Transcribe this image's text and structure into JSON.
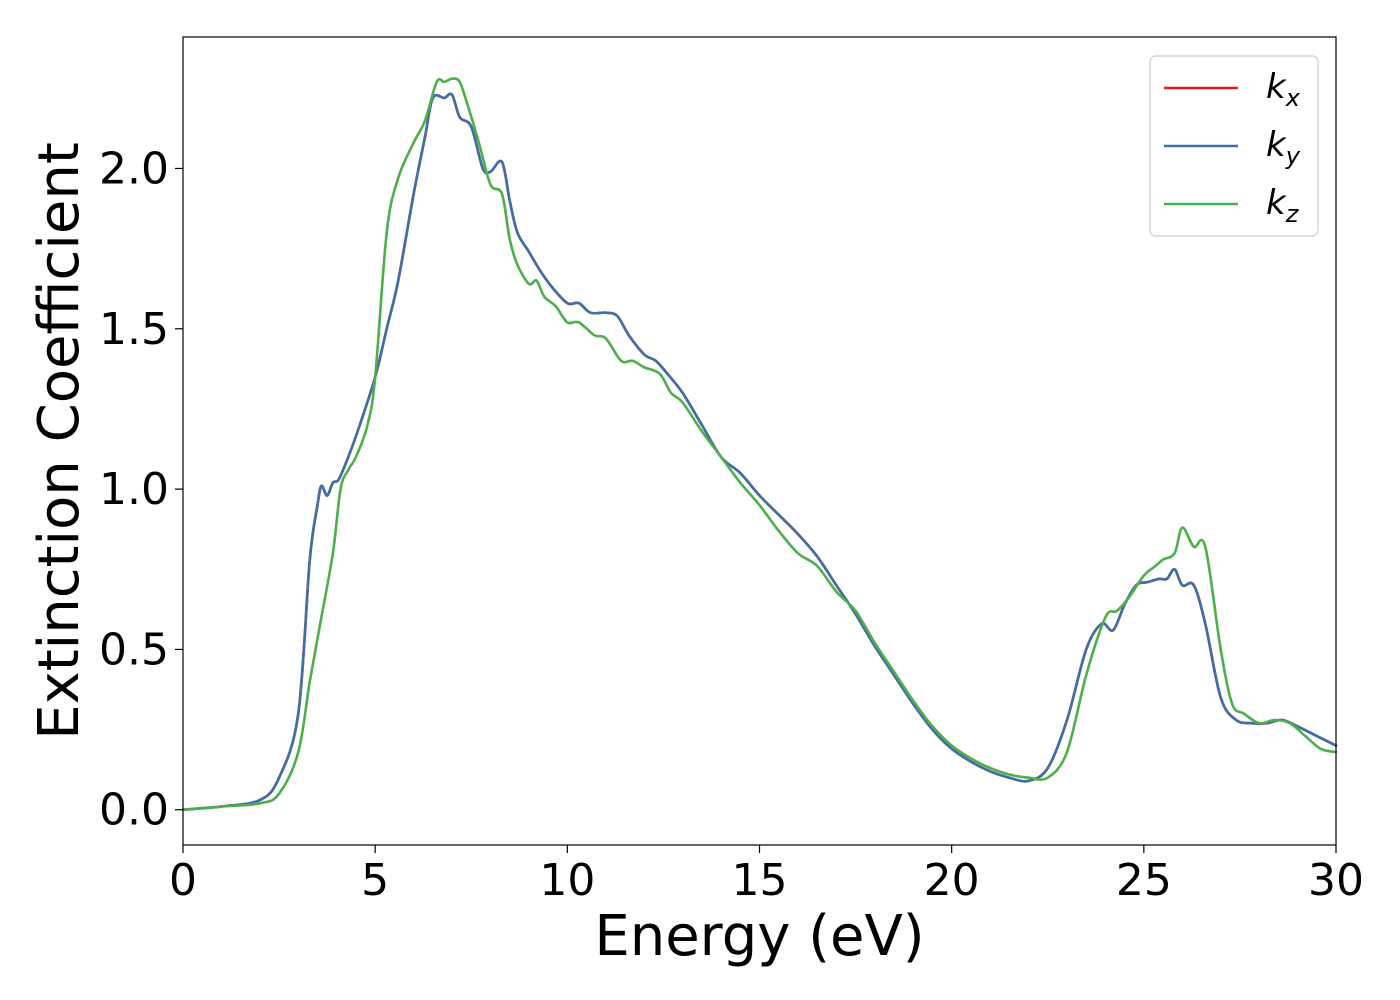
{
  "chart_data": {
    "type": "line",
    "xlabel": "Energy (eV)",
    "ylabel": "Extinction Coefficient",
    "xlim": [
      0,
      30
    ],
    "ylim": [
      -0.11,
      2.41
    ],
    "xticks": [
      0,
      5,
      10,
      15,
      20,
      25,
      30
    ],
    "xtick_labels": [
      "0",
      "5",
      "10",
      "15",
      "20",
      "25",
      "30"
    ],
    "yticks": [
      0.0,
      0.5,
      1.0,
      1.5,
      2.0
    ],
    "ytick_labels": [
      "0.0",
      "0.5",
      "1.0",
      "1.5",
      "2.0"
    ],
    "grid": false,
    "legend": "top-right",
    "series": [
      {
        "name": "k_x",
        "label_base": "k",
        "label_sub": "x",
        "color": "#e41a1c",
        "x": [
          0,
          1,
          2,
          2.5,
          3,
          3.3,
          3.5,
          3.6,
          3.75,
          3.9,
          4.05,
          4.3,
          4.6,
          5,
          5.3,
          5.6,
          6,
          6.3,
          6.5,
          6.8,
          7,
          7.2,
          7.5,
          7.8,
          8,
          8.3,
          8.5,
          8.7,
          9,
          9.3,
          9.6,
          10,
          10.3,
          10.6,
          11,
          11.3,
          11.6,
          12,
          12.3,
          12.6,
          13,
          13.5,
          14,
          14.5,
          15,
          15.5,
          16,
          16.5,
          17,
          17.5,
          18,
          18.5,
          19,
          19.5,
          20,
          20.5,
          21,
          21.5,
          22,
          22.5,
          23,
          23.5,
          23.9,
          24.2,
          24.5,
          24.8,
          25.1,
          25.4,
          25.6,
          25.8,
          26,
          26.3,
          26.6,
          27,
          27.4,
          27.8,
          28.2,
          28.6,
          29,
          29.5,
          30
        ],
        "y": [
          0,
          0.01,
          0.03,
          0.1,
          0.3,
          0.78,
          0.95,
          1.01,
          0.98,
          1.02,
          1.03,
          1.1,
          1.2,
          1.35,
          1.5,
          1.65,
          1.92,
          2.1,
          2.22,
          2.22,
          2.23,
          2.16,
          2.13,
          2.0,
          1.99,
          2.02,
          1.9,
          1.8,
          1.74,
          1.68,
          1.63,
          1.58,
          1.58,
          1.55,
          1.55,
          1.54,
          1.48,
          1.42,
          1.4,
          1.36,
          1.3,
          1.2,
          1.1,
          1.05,
          0.98,
          0.92,
          0.86,
          0.79,
          0.7,
          0.61,
          0.51,
          0.42,
          0.33,
          0.25,
          0.19,
          0.15,
          0.12,
          0.1,
          0.09,
          0.13,
          0.28,
          0.5,
          0.58,
          0.56,
          0.64,
          0.7,
          0.71,
          0.72,
          0.72,
          0.75,
          0.7,
          0.7,
          0.58,
          0.35,
          0.28,
          0.27,
          0.27,
          0.28,
          0.26,
          0.23,
          0.2
        ]
      },
      {
        "name": "k_y",
        "label_base": "k",
        "label_sub": "y",
        "color": "#3d6fa8",
        "x": [
          0,
          1,
          2,
          2.5,
          3,
          3.3,
          3.5,
          3.6,
          3.75,
          3.9,
          4.05,
          4.3,
          4.6,
          5,
          5.3,
          5.6,
          6,
          6.3,
          6.5,
          6.8,
          7,
          7.2,
          7.5,
          7.8,
          8,
          8.3,
          8.5,
          8.7,
          9,
          9.3,
          9.6,
          10,
          10.3,
          10.6,
          11,
          11.3,
          11.6,
          12,
          12.3,
          12.6,
          13,
          13.5,
          14,
          14.5,
          15,
          15.5,
          16,
          16.5,
          17,
          17.5,
          18,
          18.5,
          19,
          19.5,
          20,
          20.5,
          21,
          21.5,
          22,
          22.5,
          23,
          23.5,
          23.9,
          24.2,
          24.5,
          24.8,
          25.1,
          25.4,
          25.6,
          25.8,
          26,
          26.3,
          26.6,
          27,
          27.4,
          27.8,
          28.2,
          28.6,
          29,
          29.5,
          30
        ],
        "y": [
          0,
          0.01,
          0.03,
          0.1,
          0.3,
          0.78,
          0.95,
          1.01,
          0.98,
          1.02,
          1.03,
          1.1,
          1.2,
          1.35,
          1.5,
          1.65,
          1.92,
          2.1,
          2.22,
          2.22,
          2.23,
          2.16,
          2.13,
          2.0,
          1.99,
          2.02,
          1.9,
          1.8,
          1.74,
          1.68,
          1.63,
          1.58,
          1.58,
          1.55,
          1.55,
          1.54,
          1.48,
          1.42,
          1.4,
          1.36,
          1.3,
          1.2,
          1.1,
          1.05,
          0.98,
          0.92,
          0.86,
          0.79,
          0.7,
          0.61,
          0.51,
          0.42,
          0.33,
          0.25,
          0.19,
          0.15,
          0.12,
          0.1,
          0.09,
          0.13,
          0.28,
          0.5,
          0.58,
          0.56,
          0.64,
          0.7,
          0.71,
          0.72,
          0.72,
          0.75,
          0.7,
          0.7,
          0.58,
          0.35,
          0.28,
          0.27,
          0.27,
          0.28,
          0.26,
          0.23,
          0.2
        ]
      },
      {
        "name": "k_z",
        "label_base": "k",
        "label_sub": "z",
        "color": "#4daf4a",
        "x": [
          0,
          1,
          2,
          2.5,
          3,
          3.3,
          3.6,
          3.9,
          4.1,
          4.3,
          4.5,
          4.8,
          5,
          5.3,
          5.6,
          6,
          6.3,
          6.6,
          6.8,
          7,
          7.2,
          7.4,
          7.7,
          8,
          8.3,
          8.5,
          8.7,
          9,
          9.2,
          9.4,
          9.7,
          10,
          10.3,
          10.7,
          11,
          11.4,
          11.7,
          12,
          12.4,
          12.7,
          13,
          13.5,
          14,
          14.5,
          15,
          15.5,
          16,
          16.5,
          17,
          17.5,
          18,
          18.5,
          19,
          19.5,
          20,
          20.5,
          21,
          21.5,
          22,
          22.5,
          23,
          23.5,
          24,
          24.3,
          24.6,
          25,
          25.3,
          25.5,
          25.8,
          26,
          26.3,
          26.6,
          27,
          27.3,
          27.6,
          28,
          28.4,
          28.8,
          29.2,
          29.6,
          30
        ],
        "y": [
          0,
          0.01,
          0.02,
          0.05,
          0.18,
          0.4,
          0.6,
          0.8,
          1.0,
          1.06,
          1.1,
          1.2,
          1.35,
          1.8,
          1.97,
          2.08,
          2.15,
          2.27,
          2.27,
          2.28,
          2.27,
          2.2,
          2.08,
          1.95,
          1.92,
          1.78,
          1.7,
          1.64,
          1.65,
          1.6,
          1.57,
          1.52,
          1.52,
          1.48,
          1.47,
          1.4,
          1.4,
          1.38,
          1.36,
          1.3,
          1.27,
          1.18,
          1.1,
          1.02,
          0.95,
          0.87,
          0.8,
          0.76,
          0.68,
          0.62,
          0.52,
          0.43,
          0.34,
          0.26,
          0.2,
          0.16,
          0.13,
          0.11,
          0.1,
          0.1,
          0.18,
          0.42,
          0.6,
          0.62,
          0.66,
          0.73,
          0.76,
          0.78,
          0.8,
          0.88,
          0.82,
          0.82,
          0.5,
          0.33,
          0.3,
          0.27,
          0.28,
          0.27,
          0.23,
          0.19,
          0.18
        ]
      }
    ]
  }
}
